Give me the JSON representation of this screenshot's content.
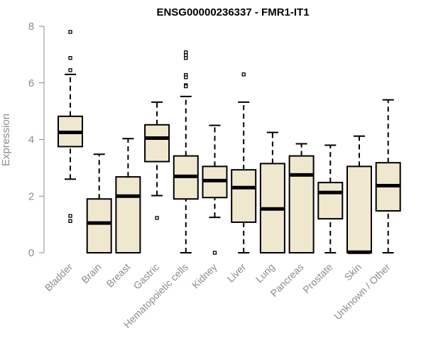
{
  "chart_data": {
    "type": "box",
    "title": "ENSG00000236337 - FMR1-IT1",
    "ylabel": "Expression",
    "xlabel": "",
    "ylim": [
      0,
      8
    ],
    "yticks": [
      0,
      2,
      4,
      6,
      8
    ],
    "grid": false,
    "legend": "none",
    "categories": [
      "Bladder",
      "Brain",
      "Breast",
      "Gastric",
      "Hematopoietic cells",
      "Kidney",
      "Liver",
      "Lung",
      "Pancreas",
      "Prostate",
      "Skin",
      "Unknown / Other"
    ],
    "boxes": [
      {
        "category": "Bladder",
        "whisker_low": 2.6,
        "q1": 3.75,
        "median": 4.25,
        "q3": 4.82,
        "whisker_high": 6.3,
        "outliers": [
          7.8,
          6.88,
          6.45,
          1.3,
          1.12
        ]
      },
      {
        "category": "Brain",
        "whisker_low": 0,
        "q1": 0,
        "median": 1.05,
        "q3": 1.9,
        "whisker_high": 3.48,
        "outliers": []
      },
      {
        "category": "Breast",
        "whisker_low": 0,
        "q1": 0,
        "median": 2.0,
        "q3": 2.68,
        "whisker_high": 4.03,
        "outliers": []
      },
      {
        "category": "Gastric",
        "whisker_low": 2.02,
        "q1": 3.22,
        "median": 4.05,
        "q3": 4.52,
        "whisker_high": 5.32,
        "outliers": [
          1.23
        ]
      },
      {
        "category": "Hematopoietic cells",
        "whisker_low": 0,
        "q1": 1.9,
        "median": 2.7,
        "q3": 3.42,
        "whisker_high": 5.52,
        "outliers": [
          7.08,
          6.98,
          6.88,
          6.28,
          6.2,
          5.92,
          5.88
        ]
      },
      {
        "category": "Kidney",
        "whisker_low": 1.25,
        "q1": 1.95,
        "median": 2.55,
        "q3": 3.05,
        "whisker_high": 4.5,
        "outliers": [
          0
        ]
      },
      {
        "category": "Liver",
        "whisker_low": 0,
        "q1": 1.08,
        "median": 2.3,
        "q3": 2.93,
        "whisker_high": 5.32,
        "outliers": [
          6.3
        ]
      },
      {
        "category": "Lung",
        "whisker_low": 0,
        "q1": 0,
        "median": 1.55,
        "q3": 3.15,
        "whisker_high": 4.25,
        "outliers": []
      },
      {
        "category": "Pancreas",
        "whisker_low": 0,
        "q1": 0,
        "median": 2.75,
        "q3": 3.42,
        "whisker_high": 3.85,
        "outliers": []
      },
      {
        "category": "Prostate",
        "whisker_low": 0,
        "q1": 1.2,
        "median": 2.13,
        "q3": 2.48,
        "whisker_high": 3.8,
        "outliers": []
      },
      {
        "category": "Skin",
        "whisker_low": 0,
        "q1": 0,
        "median": 0.02,
        "q3": 3.05,
        "whisker_high": 4.12,
        "outliers": []
      },
      {
        "category": "Unknown / Other",
        "whisker_low": 0,
        "q1": 1.48,
        "median": 2.37,
        "q3": 3.18,
        "whisker_high": 5.4,
        "outliers": []
      }
    ],
    "colors": {
      "box_fill": "#efe8cf",
      "box_stroke": "#000000",
      "median": "#000000",
      "axis": "#8c8c8c",
      "text": "#8c8c8c",
      "title": "#000000"
    }
  }
}
